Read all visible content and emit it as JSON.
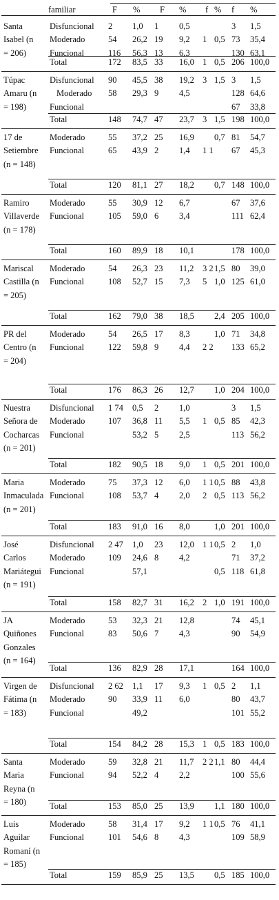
{
  "header": {
    "row_label": "familiar",
    "col_labels": [
      "F",
      "%",
      "F",
      "%",
      "f",
      "%",
      "f",
      "%"
    ]
  },
  "blocks": [
    {
      "name": [
        "Santa",
        "Isabel (n",
        "= 206)"
      ],
      "cats": [
        "Disfuncional",
        "Moderado",
        "Funcional",
        "Total"
      ],
      "rows": [
        [
          "2",
          "1,0",
          "1",
          "0,5",
          "",
          "",
          "3",
          "1,5"
        ],
        [
          "54",
          "26,2",
          "19",
          "9,2",
          "1",
          "0,5",
          "73",
          "35,4"
        ],
        [
          "116",
          "56,3",
          "13",
          "6,3",
          "",
          "",
          "130",
          "63,1"
        ],
        [
          "172",
          "83,5",
          "33",
          "16,0",
          "1",
          "0,5",
          "206",
          "100,0"
        ]
      ]
    },
    {
      "name": [
        "Túpac",
        "Amaru (n",
        "= 198)"
      ],
      "cats": [
        "Disfuncional",
        "Moderado",
        "Funcional",
        "Total"
      ],
      "rows": [
        [
          "90",
          "45,5",
          "38",
          "19,2",
          "3",
          "1,5",
          "3",
          "1,5"
        ],
        [
          "58",
          "29,3",
          "9",
          "4,5",
          "",
          "",
          "128",
          "64,6"
        ],
        [
          "",
          "",
          "",
          "",
          "",
          "",
          "67",
          "33,8"
        ],
        [
          "148",
          "74,7",
          "47",
          "23,7",
          "3",
          "1,5",
          "198",
          "100,0"
        ]
      ]
    },
    {
      "name": [
        "17 de",
        "Setiembre",
        "(n = 148)"
      ],
      "cats": [
        "Moderado",
        "Funcional",
        "Total"
      ],
      "rows": [
        [
          "55",
          "37,2",
          "25",
          "16,9",
          "",
          "0,7",
          "81",
          "54,7"
        ],
        [
          "65",
          "43,9",
          "2",
          "1,4",
          "1 1",
          "",
          "67",
          "45,3"
        ],
        [
          "120",
          "81,1",
          "27",
          "18,2",
          "",
          "0,7",
          "148",
          "100,0"
        ]
      ]
    },
    {
      "name": [
        "Ramiro",
        "Villaverde",
        "(n = 178)"
      ],
      "cats": [
        "Moderado",
        "Funcional",
        "Total"
      ],
      "rows": [
        [
          "55",
          "30,9",
          "12",
          "6,7",
          "",
          "",
          "67",
          "37,6"
        ],
        [
          "105",
          "59,0",
          "6",
          "3,4",
          "",
          "",
          "111",
          "62,4"
        ],
        [
          "160",
          "89,9",
          "18",
          "10,1",
          "",
          "",
          "178",
          "100,0"
        ]
      ]
    },
    {
      "name": [
        "Mariscal",
        "Castilla (n",
        "= 205)"
      ],
      "cats": [
        "Moderado",
        "Funcional",
        "Total"
      ],
      "rows": [
        [
          "54",
          "26,3",
          "23",
          "11,2",
          "3 2",
          "1,5",
          "80",
          "39,0"
        ],
        [
          "108",
          "52,7",
          "15",
          "7,3",
          "5",
          "1,0",
          "125",
          "61,0"
        ],
        [
          "162",
          "79,0",
          "38",
          "18,5",
          "",
          "2,4",
          "205",
          "100,0"
        ]
      ]
    },
    {
      "name": [
        "PR del",
        "Centro (n",
        "= 204)"
      ],
      "cats": [
        "Moderado",
        "Funcional",
        "Total"
      ],
      "rows": [
        [
          "54",
          "26,5",
          "17",
          "8,3",
          "",
          "1,0",
          "71",
          "34,8"
        ],
        [
          "122",
          "59,8",
          "9",
          "4,4",
          "2 2",
          "",
          "133",
          "65,2"
        ],
        [
          "176",
          "86,3",
          "26",
          "12,7",
          "",
          "1,0",
          "204",
          "100,0"
        ]
      ]
    },
    {
      "name": [
        "Nuestra",
        "Señora de",
        "Cocharcas",
        "(n = 201)"
      ],
      "cats": [
        "Disfuncional",
        "Moderado",
        "Funcional",
        "Total"
      ],
      "rows": [
        [
          "1 74",
          "0,5",
          "2",
          "1,0",
          "",
          "",
          "3",
          "1,5"
        ],
        [
          "107",
          "36,8",
          "11",
          "5,5",
          "1",
          "0,5",
          "85",
          "42,3"
        ],
        [
          "",
          "53,2",
          "5",
          "2,5",
          "",
          "",
          "113",
          "56,2"
        ],
        [
          "182",
          "90,5",
          "18",
          "9,0",
          "1",
          "0,5",
          "201",
          "100,0"
        ]
      ]
    },
    {
      "name": [
        "Maria",
        "Inmaculada",
        " (n = 201)"
      ],
      "cats": [
        "Moderado",
        "Funcional",
        "Total"
      ],
      "rows": [
        [
          "75",
          "37,3",
          "12",
          "6,0",
          "1 1",
          "0,5",
          "88",
          "43,8"
        ],
        [
          "108",
          "53,7",
          "4",
          "2,0",
          "2",
          "0,5",
          "113",
          "56,2"
        ],
        [
          "183",
          "91,0",
          "16",
          "8,0",
          "",
          "1,0",
          "201",
          "100,0"
        ]
      ]
    },
    {
      "name": [
        "José",
        "Carlos",
        "Mariátegui",
        "(n = 191)"
      ],
      "cats": [
        "Disfuncional",
        "Moderado",
        "Funcional",
        "Total"
      ],
      "rows": [
        [
          "2 47",
          "1,0",
          "23",
          "12,0",
          "1 1",
          "0,5",
          "2",
          "1,0"
        ],
        [
          "109",
          "24,6",
          "8",
          "4,2",
          "",
          "",
          "71",
          "37,2"
        ],
        [
          "",
          "57,1",
          "",
          "",
          "",
          "0,5",
          "118",
          "61,8"
        ],
        [
          "158",
          "82,7",
          "31",
          "16,2",
          "2",
          "1,0",
          "191",
          "100,0"
        ]
      ]
    },
    {
      "name": [
        "JA",
        "Quiñones",
        "Gonzales",
        "(n = 164)"
      ],
      "cats": [
        "Moderado",
        "Funcional",
        "Total"
      ],
      "rows": [
        [
          "53",
          "32,3",
          "21",
          "12,8",
          "",
          "",
          "74",
          "45,1"
        ],
        [
          "83",
          "50,6",
          "7",
          "4,3",
          "",
          "",
          "90",
          "54,9"
        ],
        [
          "136",
          "82,9",
          "28",
          "17,1",
          "",
          "",
          "164",
          "100,0"
        ]
      ]
    },
    {
      "name": [
        "Virgen de",
        "Fátima (n",
        "= 183)"
      ],
      "cats": [
        "Disfuncional",
        "Moderado",
        "Funcional",
        "Total"
      ],
      "rows": [
        [
          "2 62",
          "1,1",
          "17",
          "9,3",
          "1",
          "0,5",
          "2",
          "1,1"
        ],
        [
          "90",
          "33,9",
          "11",
          "6,0",
          "",
          "",
          "80",
          "43,7"
        ],
        [
          "",
          "49,2",
          "",
          "",
          "",
          "",
          "101",
          "55,2"
        ],
        [
          "154",
          "84,2",
          "28",
          "15,3",
          "1",
          "0,5",
          "183",
          "100,0"
        ]
      ]
    },
    {
      "name": [
        "Santa",
        "Maria",
        "Reyna (n",
        "= 180)"
      ],
      "cats": [
        "Moderado",
        "Funcional",
        "Total"
      ],
      "rows": [
        [
          "59",
          "32,8",
          "21",
          "11,7",
          "2 2",
          "1,1",
          "80",
          "44,4"
        ],
        [
          "94",
          "52,2",
          "4",
          "2,2",
          "",
          "",
          "100",
          "55,6"
        ],
        [
          "153",
          "85,0",
          "25",
          "13,9",
          "",
          "1,1",
          "180",
          "100,0"
        ]
      ]
    },
    {
      "name": [
        "Luis",
        "Aguilar",
        "Romaní (n",
        "= 185)"
      ],
      "cats": [
        "Moderado",
        "Funcional",
        "Total"
      ],
      "rows": [
        [
          "58",
          "31,4",
          "17",
          "9,2",
          "1 1",
          "0,5",
          "76",
          "41,1"
        ],
        [
          "101",
          "54,6",
          "8",
          "4,3",
          "",
          "",
          "109",
          "58,9"
        ],
        [
          "159",
          "85,9",
          "25",
          "13,5",
          "",
          "0,5",
          "185",
          "100,0"
        ]
      ]
    }
  ]
}
